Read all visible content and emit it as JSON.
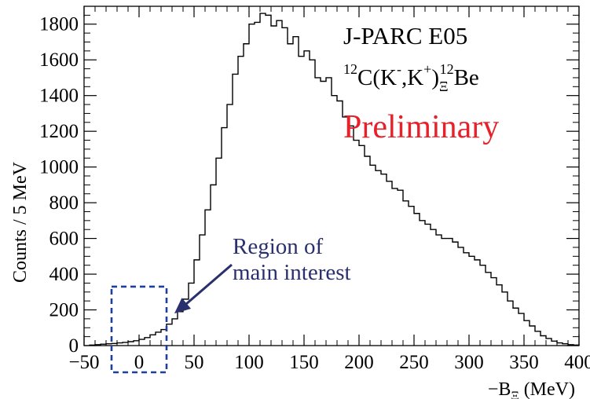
{
  "chart_data": {
    "type": "histogram",
    "title_lines": [
      "J-PARC E05"
    ],
    "reaction_parts": {
      "pre": "12",
      "mid1": "C(K",
      "sup1": "-",
      "mid2": ",K",
      "sup2": "+",
      "mid3": ")",
      "sub": "Ξ",
      "sup3": "12",
      "post": "Be"
    },
    "preliminary_label": "Preliminary",
    "annotation": [
      "Region of",
      "main interest"
    ],
    "xlabel_parts": {
      "main": "−B",
      "sub": "Ξ",
      "unit": " (MeV)"
    },
    "ylabel": "Counts / 5 MeV",
    "xlim": [
      -50,
      400
    ],
    "ylim": [
      0,
      1900
    ],
    "x_ticks": [
      -50,
      0,
      50,
      100,
      150,
      200,
      250,
      300,
      350,
      400
    ],
    "x_tick_labels": [
      "−50",
      "0",
      "50",
      "100",
      "150",
      "200",
      "250",
      "300",
      "350",
      "400"
    ],
    "y_ticks": [
      0,
      200,
      400,
      600,
      800,
      1000,
      1200,
      1400,
      1600,
      1800
    ],
    "y_tick_labels": [
      "0",
      "200",
      "400",
      "600",
      "800",
      "1000",
      "1200",
      "1400",
      "1600",
      "1800"
    ],
    "bin_width": 5,
    "bin_edges_start": -45,
    "counts": [
      3,
      5,
      8,
      10,
      12,
      15,
      18,
      22,
      27,
      35,
      45,
      60,
      75,
      90,
      120,
      150,
      190,
      260,
      350,
      480,
      620,
      760,
      900,
      1050,
      1220,
      1350,
      1520,
      1620,
      1690,
      1800,
      1810,
      1860,
      1850,
      1790,
      1820,
      1780,
      1690,
      1730,
      1620,
      1650,
      1600,
      1500,
      1480,
      1500,
      1400,
      1370,
      1280,
      1230,
      1150,
      1120,
      1060,
      1010,
      980,
      960,
      920,
      880,
      870,
      810,
      780,
      740,
      700,
      680,
      650,
      620,
      600,
      600,
      580,
      550,
      520,
      500,
      480,
      450,
      410,
      380,
      340,
      300,
      250,
      210,
      180,
      140,
      110,
      80,
      55,
      40,
      25,
      15,
      10,
      5,
      3
    ],
    "region_box": {
      "x": [
        -25,
        25
      ],
      "y": [
        0,
        330
      ]
    },
    "colors": {
      "histogram": "#000000",
      "preliminary": "#e8202a",
      "annotation": "#2a2f6e",
      "region_box": "#1f3f9e"
    }
  }
}
